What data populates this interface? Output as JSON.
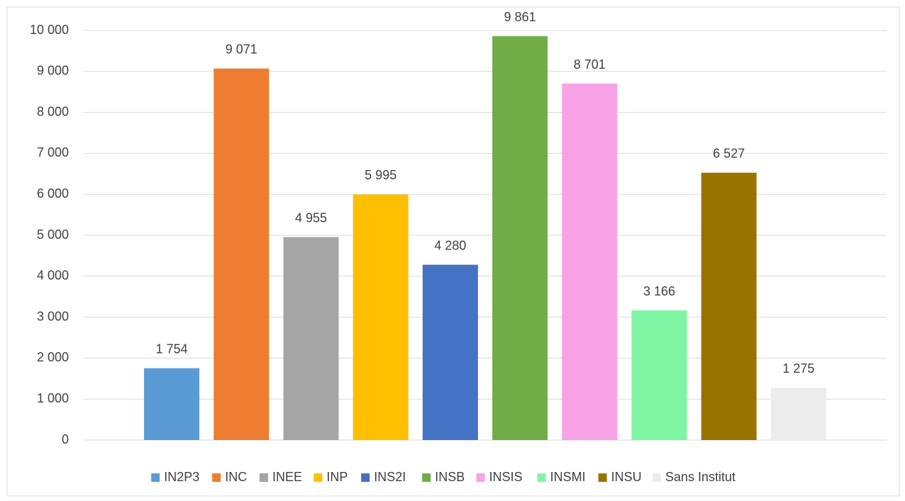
{
  "chart_data": {
    "type": "bar",
    "categories": [
      "IN2P3",
      "INC",
      "INEE",
      "INP",
      "INS2I",
      "INSB",
      "INSIS",
      "INSMI",
      "INSU",
      "Sans Institut"
    ],
    "values": [
      1754,
      9071,
      4955,
      5995,
      4280,
      9861,
      8701,
      3166,
      6527,
      1275
    ],
    "value_labels": [
      "1 754",
      "9 071",
      "4 955",
      "5 995",
      "4 280",
      "9 861",
      "8 701",
      "3 166",
      "6 527",
      "1 275"
    ],
    "colors": [
      "#5b9bd5",
      "#ed7d31",
      "#a5a5a5",
      "#ffc000",
      "#4472c4",
      "#70ad47",
      "#f7a1e6",
      "#7ef5a2",
      "#997300",
      "#ececec"
    ],
    "ylim": [
      0,
      10000
    ],
    "yticks": [
      0,
      {
        "value": 1000,
        "label": "1 000"
      },
      {
        "value": 2000,
        "label": "2 000"
      },
      {
        "value": 3000,
        "label": "3 000"
      },
      {
        "value": 4000,
        "label": "4 000"
      },
      {
        "value": 5000,
        "label": "5 000"
      },
      {
        "value": 6000,
        "label": "6 000"
      },
      {
        "value": 7000,
        "label": "7 000"
      },
      {
        "value": 8000,
        "label": "8 000"
      },
      {
        "value": 9000,
        "label": "9 000"
      },
      {
        "value": 10000,
        "label": "10 000"
      }
    ],
    "grid": true,
    "legend": "bottom"
  }
}
